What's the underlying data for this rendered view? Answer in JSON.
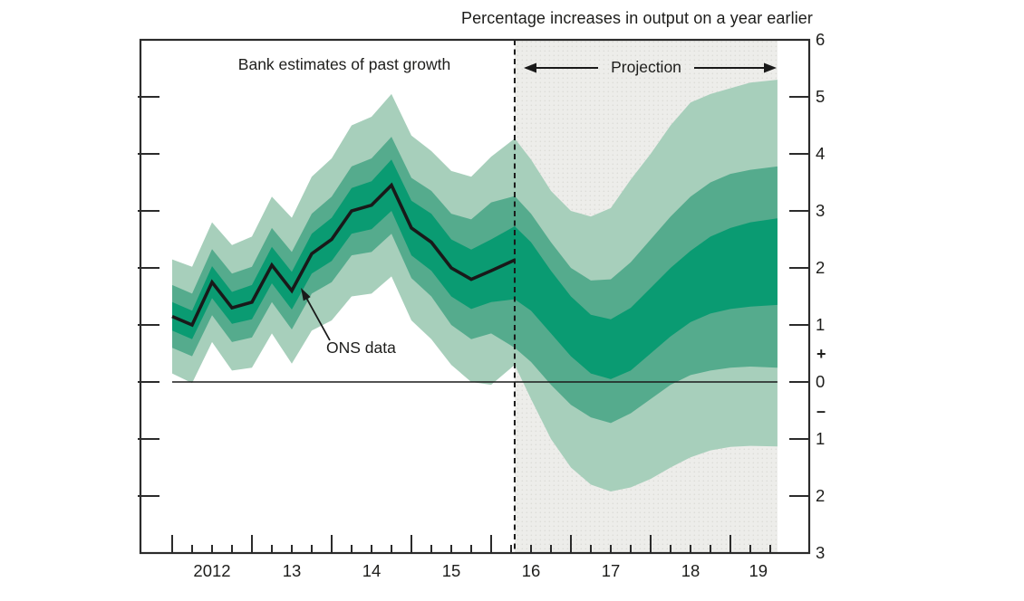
{
  "labels": {
    "title": "Percentage increases in output on a year earlier",
    "past_region": "Bank estimates of past growth",
    "projection_region": "Projection",
    "ons_annotation": "ONS data"
  },
  "colors": {
    "band_dark": "#0a9b72",
    "band_mid": "#55ab8d",
    "band_light": "#a7cfbb",
    "data_line": "#191919",
    "axis": "#2b2b2b",
    "zero_line": "#1a1a1a",
    "projection_bg": "#ededea",
    "projection_dot": "#dcdcd7",
    "text": "#1d1d1b"
  },
  "chart_data": {
    "type": "area",
    "variant": "fan-chart",
    "title": "Percentage increases in output on a year earlier",
    "xlabel": "",
    "ylabel": "",
    "ylim": [
      -3,
      6
    ],
    "grid": false,
    "x_axis": {
      "unit": "quarters since 2012 Q1",
      "q_min": 0,
      "q_max": 30.36,
      "long_tick_every": 4,
      "years": [
        {
          "q": 2,
          "label": "2012"
        },
        {
          "q": 6,
          "label": "13"
        },
        {
          "q": 10,
          "label": "14"
        },
        {
          "q": 14,
          "label": "15"
        },
        {
          "q": 18,
          "label": "16"
        },
        {
          "q": 22,
          "label": "17"
        },
        {
          "q": 26,
          "label": "18"
        },
        {
          "q": 29.4,
          "label": "19"
        }
      ]
    },
    "y_axis": {
      "ticks": [
        {
          "v": 6,
          "label": "6"
        },
        {
          "v": 5,
          "label": "5"
        },
        {
          "v": 4,
          "label": "4"
        },
        {
          "v": 3,
          "label": "3"
        },
        {
          "v": 2,
          "label": "2"
        },
        {
          "v": 1,
          "label": "1"
        },
        {
          "v": 0,
          "label": "0"
        },
        {
          "v": -1,
          "label": "1"
        },
        {
          "v": -2,
          "label": "2"
        },
        {
          "v": -3,
          "label": "3"
        }
      ],
      "sign_markers": [
        {
          "v": 0.5,
          "label": "+"
        },
        {
          "v": -0.5,
          "label": "–"
        }
      ]
    },
    "projection_boundary_q": 17.18,
    "ons_line": {
      "name": "ONS data / Bank estimates of past growth",
      "q": [
        0,
        1,
        2,
        3,
        4,
        5,
        6,
        7,
        8,
        9,
        10,
        11,
        12,
        13,
        14,
        15,
        16,
        17.18
      ],
      "v": [
        1.15,
        1.0,
        1.75,
        1.3,
        1.4,
        2.05,
        1.6,
        2.25,
        2.5,
        3.0,
        3.1,
        3.45,
        2.7,
        2.45,
        2.0,
        1.8,
        1.95,
        2.14
      ]
    },
    "bands": {
      "past": {
        "q": [
          0,
          1,
          2,
          3,
          4,
          5,
          6,
          7,
          8,
          9,
          10,
          11,
          12,
          13,
          14,
          15,
          16,
          17.18
        ],
        "light_top": [
          2.15,
          2.02,
          2.8,
          2.4,
          2.55,
          3.25,
          2.88,
          3.6,
          3.92,
          4.5,
          4.65,
          5.05,
          4.32,
          4.05,
          3.7,
          3.6,
          3.95,
          4.27
        ],
        "mid_top": [
          1.7,
          1.55,
          2.33,
          1.9,
          2.02,
          2.7,
          2.28,
          2.95,
          3.25,
          3.78,
          3.92,
          4.3,
          3.58,
          3.35,
          2.95,
          2.85,
          3.15,
          3.26
        ],
        "dark_top": [
          1.4,
          1.25,
          2.03,
          1.58,
          1.7,
          2.37,
          1.93,
          2.6,
          2.88,
          3.4,
          3.52,
          3.9,
          3.18,
          2.95,
          2.5,
          2.32,
          2.5,
          2.73
        ],
        "dark_bot": [
          0.9,
          0.75,
          1.47,
          1.02,
          1.1,
          1.73,
          1.27,
          1.9,
          2.12,
          2.6,
          2.68,
          3.0,
          2.22,
          1.95,
          1.5,
          1.28,
          1.4,
          1.45
        ],
        "mid_bot": [
          0.6,
          0.45,
          1.17,
          0.7,
          0.78,
          1.4,
          0.92,
          1.55,
          1.75,
          2.22,
          2.28,
          2.6,
          1.82,
          1.5,
          1.0,
          0.75,
          0.85,
          0.6
        ],
        "light_bot": [
          0.15,
          -0.02,
          0.7,
          0.2,
          0.25,
          0.85,
          0.32,
          0.9,
          1.08,
          1.5,
          1.55,
          1.85,
          1.08,
          0.75,
          0.3,
          0.0,
          -0.05,
          0.3
        ]
      },
      "projection": {
        "q": [
          17.18,
          18,
          19,
          20,
          21,
          22,
          23,
          24,
          25,
          26,
          27,
          28,
          29,
          30.36
        ],
        "light_top": [
          4.27,
          3.9,
          3.35,
          3.0,
          2.9,
          3.05,
          3.55,
          4.0,
          4.5,
          4.9,
          5.05,
          5.15,
          5.25,
          5.3
        ],
        "mid_top": [
          3.26,
          2.95,
          2.45,
          2.0,
          1.78,
          1.8,
          2.1,
          2.5,
          2.9,
          3.25,
          3.5,
          3.65,
          3.72,
          3.78
        ],
        "dark_top": [
          2.73,
          2.45,
          1.95,
          1.5,
          1.18,
          1.1,
          1.3,
          1.65,
          2.0,
          2.3,
          2.55,
          2.7,
          2.8,
          2.87
        ],
        "dark_bot": [
          1.45,
          1.25,
          0.85,
          0.45,
          0.15,
          0.05,
          0.2,
          0.5,
          0.8,
          1.05,
          1.2,
          1.28,
          1.32,
          1.35
        ],
        "mid_bot": [
          0.6,
          0.35,
          -0.05,
          -0.4,
          -0.62,
          -0.72,
          -0.55,
          -0.3,
          -0.05,
          0.12,
          0.2,
          0.25,
          0.27,
          0.25
        ],
        "light_bot": [
          0.3,
          -0.3,
          -1.0,
          -1.5,
          -1.8,
          -1.92,
          -1.85,
          -1.7,
          -1.5,
          -1.32,
          -1.2,
          -1.14,
          -1.12,
          -1.13
        ]
      }
    },
    "legend_position": "none",
    "annotations": [
      {
        "text": "ONS data",
        "points_to_q": 6,
        "points_to_v": 1.6
      },
      {
        "text": "Projection",
        "arrow": "double-headed",
        "spans_q": [
          17.18,
          30.36
        ]
      },
      {
        "text": "Bank estimates of past growth",
        "region_q": [
          0,
          17.18
        ]
      }
    ]
  }
}
